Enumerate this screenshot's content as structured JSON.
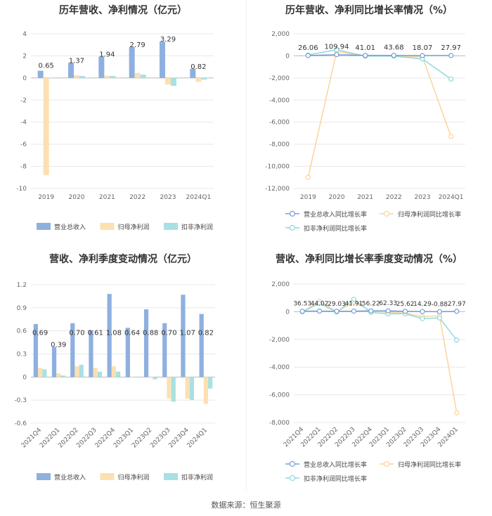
{
  "source": "数据来源：恒生聚源",
  "colors": {
    "revenue": "#8eb0df",
    "net_profit": "#fde0b2",
    "deducted": "#a8e1e3",
    "revenue_line": "#7a9fd6",
    "net_profit_line": "#fcd49b",
    "deducted_line": "#8fd9de"
  },
  "chart_data": [
    {
      "type": "bar",
      "title": "历年营收、净利情况（亿元）",
      "categories": [
        "2019",
        "2020",
        "2021",
        "2022",
        "2023",
        "2024Q1"
      ],
      "ylim": [
        -10,
        4
      ],
      "yticks": [
        4,
        2,
        0,
        -2,
        -4,
        -6,
        -8,
        -10
      ],
      "series": [
        {
          "name": "营业总收入",
          "values": [
            0.65,
            1.37,
            1.94,
            2.79,
            3.29,
            0.82
          ]
        },
        {
          "name": "归母净利润",
          "values": [
            -8.8,
            0.25,
            0.2,
            0.45,
            -0.6,
            -0.35
          ]
        },
        {
          "name": "扣非净利润",
          "values": [
            0.02,
            0.18,
            0.18,
            0.3,
            -0.72,
            -0.15
          ]
        }
      ],
      "data_labels": [
        "0.65",
        "1.37",
        "1.94",
        "2.79",
        "3.29",
        "0.82"
      ],
      "legend": "bottom"
    },
    {
      "type": "line",
      "title": "历年营收、净利同比增长率情况（%）",
      "categories": [
        "2019",
        "2020",
        "2021",
        "2022",
        "2023",
        "2024Q1"
      ],
      "ylim": [
        -12000,
        2000
      ],
      "yticks": [
        "2,000",
        "0",
        "-2,000",
        "-4,000",
        "-6,000",
        "-8,000",
        "-10,000",
        "-12,000"
      ],
      "series": [
        {
          "name": "营业总收入同比增长率",
          "values": [
            26.06,
            109.94,
            41.01,
            43.68,
            18.07,
            27.97
          ]
        },
        {
          "name": "归母净利润同比增长率",
          "values": [
            -11000,
            400,
            -30,
            -10,
            -100,
            -7300
          ]
        },
        {
          "name": "扣非净利润同比增长率",
          "values": [
            80,
            550,
            -20,
            -30,
            -280,
            -2100
          ]
        }
      ],
      "data_labels": [
        "26.06",
        "109.94",
        "41.01",
        "43.68",
        "18.07",
        "27.97"
      ],
      "legend": "bottom"
    },
    {
      "type": "bar",
      "title": "营收、净利季度变动情况（亿元）",
      "categories": [
        "2021Q4",
        "2022Q1",
        "2022Q2",
        "2022Q3",
        "2022Q4",
        "2023Q1",
        "2023Q2",
        "2023Q3",
        "2023Q4",
        "2024Q1"
      ],
      "ylim": [
        -0.6,
        1.2
      ],
      "yticks": [
        "1.2",
        "0.9",
        "0.6",
        "0.3",
        "0",
        "-0.3",
        "-0.6"
      ],
      "series": [
        {
          "name": "营业总收入",
          "values": [
            0.69,
            0.39,
            0.7,
            0.61,
            1.08,
            0.64,
            0.88,
            0.7,
            1.07,
            0.82
          ]
        },
        {
          "name": "归母净利润",
          "values": [
            0.12,
            0.05,
            0.14,
            0.12,
            0.14,
            0.0,
            0.0,
            -0.28,
            -0.28,
            -0.35
          ]
        },
        {
          "name": "扣非净利润",
          "values": [
            0.1,
            0.02,
            0.16,
            0.07,
            0.07,
            0.0,
            -0.03,
            -0.32,
            -0.3,
            -0.15
          ]
        }
      ],
      "data_labels": [
        "0.69",
        "0.39",
        "0.70",
        "0.61",
        "1.08",
        "0.64",
        "0.88",
        "0.70",
        "1.07",
        "0.82"
      ],
      "legend": "bottom"
    },
    {
      "type": "line",
      "title": "营收、净利同比增长率季度变动情况（%）",
      "categories": [
        "2021Q4",
        "2022Q1",
        "2022Q2",
        "2022Q3",
        "2022Q4",
        "2023Q1",
        "2023Q2",
        "2023Q3",
        "2023Q4",
        "2024Q1"
      ],
      "ylim": [
        -8000,
        2000
      ],
      "yticks": [
        "2,000",
        "0",
        "-2,000",
        "-4,000",
        "-6,000",
        "-8,000"
      ],
      "series": [
        {
          "name": "营业总收入同比增长率",
          "values": [
            36.53,
            44.02,
            29.03,
            41.91,
            56.22,
            62.33,
            25.62,
            14.29,
            -0.88,
            27.97
          ]
        },
        {
          "name": "归母净利润同比增长率",
          "values": [
            0,
            750,
            0,
            700,
            50,
            -50,
            -100,
            -350,
            -300,
            -7300
          ]
        },
        {
          "name": "扣非净利润同比增长率",
          "values": [
            0,
            600,
            -20,
            900,
            -50,
            -150,
            -150,
            -500,
            -450,
            -2050
          ]
        }
      ],
      "data_labels": [
        "36.53",
        "44.02",
        "29.03",
        "41.91",
        "56.22",
        "62.33",
        "25.62",
        "14.29",
        "-0.88",
        "27.97"
      ],
      "legend": "bottom"
    }
  ]
}
